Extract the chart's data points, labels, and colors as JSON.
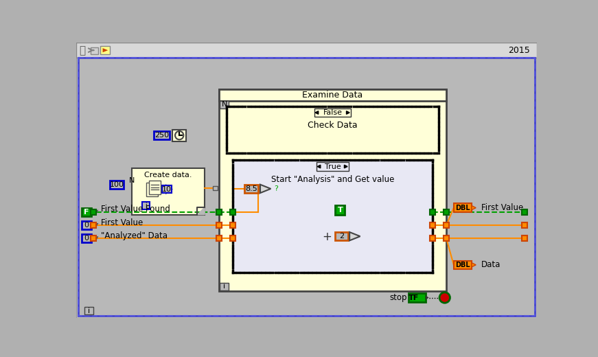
{
  "bg_outer": "#c0c0c0",
  "bg_inner": "#b0b0b0",
  "bg_diagram": "#b8b8b8",
  "wire_orange": "#FF8C00",
  "wire_green": "#00A000",
  "year_text": "2015",
  "examine_data_label": "Examine Data",
  "check_data_label": "Check Data",
  "false_label": "False",
  "start_analysis_label": "Start \"Analysis\" and Get value",
  "true_label": "True",
  "create_data_label": "Create data.",
  "first_value_found_label": "First Value Found",
  "first_value_label": "First Value",
  "analyzed_data_label": "\"Analyzed\" Data",
  "first_value_dbl_label": "First Value",
  "data_dbl_label": "Data",
  "stop_label": "stop",
  "n100_label": "100",
  "n10_label": "10",
  "n250_label": "250",
  "n85_label": "8.5",
  "n2_label": "2",
  "f_label": "F",
  "zero_label1": "0",
  "zero_label2": "0",
  "i_label": "i",
  "n_label": "N",
  "true_node_label": "T",
  "n_label2": "N",
  "i_label2": "i",
  "dbl_label": "DBL",
  "tf_label": "TF"
}
